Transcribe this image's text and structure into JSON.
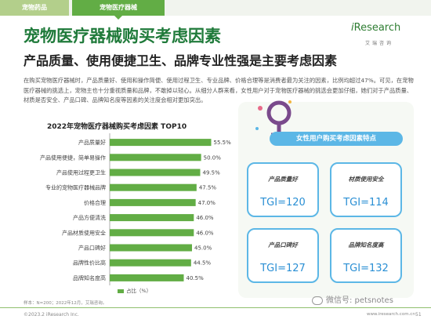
{
  "tabs": [
    "宠物药品",
    "宠物医疗器械"
  ],
  "logo": {
    "name_i": "i",
    "name_rest": "Research",
    "sub": "艾瑞咨询"
  },
  "title": "宠物医疗器械购买考虑因素",
  "subtitle": "产品质量、使用便捷卫生、品牌专业性强是主要考虑因素",
  "paragraph": "在购买宠物医疗器械时，产品质量好、使用和操作简便、使用过程卫生、专业品牌、价格合理等是消费者最为关注的因素，比例均超过47%。可见，在宠物医疗器械的挑选上，宠物主也十分重视质量和品牌，不敢掉以轻心。从细分人群来看，女性用户对于宠物医疗器械的挑选会更加仔细，她们对于产品质量、材质是否安全、产品口碑、品牌知名度等因素的关注度会相对更加突出。",
  "chart_data": {
    "type": "bar",
    "orientation": "horizontal",
    "title": "2022年宠物医疗器械购买考虑因素 TOP10",
    "categories": [
      "产品质量好",
      "产品使用便捷，简单易操作",
      "产品使用过程更卫生",
      "专业的宠物医疗器械品牌",
      "价格合理",
      "产品方便清洗",
      "产品材质使用安全",
      "产品口碑好",
      "品牌性价比高",
      "品牌知名度高"
    ],
    "values": [
      55.5,
      50.0,
      49.5,
      47.5,
      47.0,
      46.0,
      46.0,
      45.0,
      44.5,
      40.5
    ],
    "value_labels": [
      "55.5%",
      "50.0%",
      "49.5%",
      "47.5%",
      "47.0%",
      "46.0%",
      "46.0%",
      "45.0%",
      "44.5%",
      "40.5%"
    ],
    "legend": "占比（%）",
    "color": "#62ad45"
  },
  "feature_panel": {
    "title": "女性用户购买考虑因素特点",
    "cards": [
      {
        "label": "产品质量好",
        "tgi": "TGI=120"
      },
      {
        "label": "材质使用安全",
        "tgi": "TGI=114"
      },
      {
        "label": "产品口碑好",
        "tgi": "TGI=127"
      },
      {
        "label": "品牌知名度高",
        "tgi": "TGI=132"
      }
    ]
  },
  "note": "样本：N=200；2022年12月，艾瑞咨询。",
  "copyright": "©2023.2 iResearch Inc.",
  "url": "www.iresearch.com.cn",
  "page_number": "51",
  "watermark": "微信号: petsnotes"
}
